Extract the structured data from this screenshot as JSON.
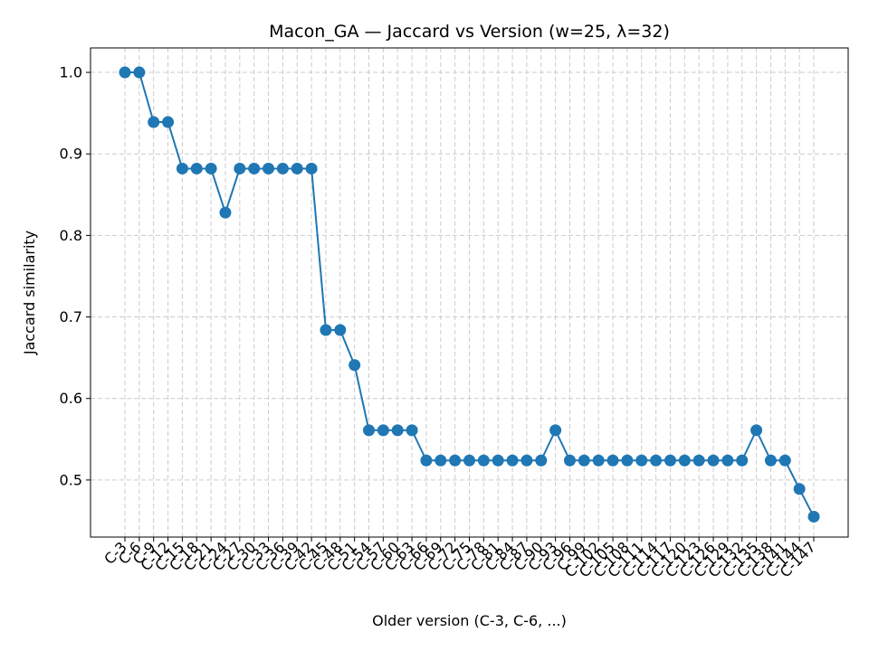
{
  "chart_data": {
    "type": "line",
    "title": "Macon_GA — Jaccard vs Version (w=25, λ=32)",
    "xlabel": "Older version (C-3, C-6, ...)",
    "ylabel": "Jaccard similarity",
    "ylim": [
      0.43,
      1.03
    ],
    "yticks": [
      0.5,
      0.6,
      0.7,
      0.8,
      0.9,
      1.0
    ],
    "ytick_labels": [
      "0.5",
      "0.6",
      "0.7",
      "0.8",
      "0.9",
      "1.0"
    ],
    "grid": true,
    "legend": "none",
    "color": "#1f77b4",
    "categories": [
      "C-3",
      "C-6",
      "C-9",
      "C-12",
      "C-15",
      "C-18",
      "C-21",
      "C-24",
      "C-27",
      "C-30",
      "C-33",
      "C-36",
      "C-39",
      "C-42",
      "C-45",
      "C-48",
      "C-51",
      "C-54",
      "C-57",
      "C-60",
      "C-63",
      "C-66",
      "C-69",
      "C-72",
      "C-75",
      "C-78",
      "C-81",
      "C-84",
      "C-87",
      "C-90",
      "C-93",
      "C-96",
      "C-99",
      "C-102",
      "C-105",
      "C-108",
      "C-111",
      "C-114",
      "C-117",
      "C-120",
      "C-123",
      "C-126",
      "C-129",
      "C-132",
      "C-135",
      "C-138",
      "C-141",
      "C-144",
      "C-147"
    ],
    "values": [
      1.0,
      1.0,
      0.939,
      0.939,
      0.882,
      0.882,
      0.882,
      0.828,
      0.882,
      0.882,
      0.882,
      0.882,
      0.882,
      0.882,
      0.684,
      0.684,
      0.641,
      0.561,
      0.561,
      0.561,
      0.561,
      0.524,
      0.524,
      0.524,
      0.524,
      0.524,
      0.524,
      0.524,
      0.524,
      0.524,
      0.561,
      0.524,
      0.524,
      0.524,
      0.524,
      0.524,
      0.524,
      0.524,
      0.524,
      0.524,
      0.524,
      0.524,
      0.524,
      0.524,
      0.561,
      0.524,
      0.524,
      0.489,
      0.455
    ]
  }
}
